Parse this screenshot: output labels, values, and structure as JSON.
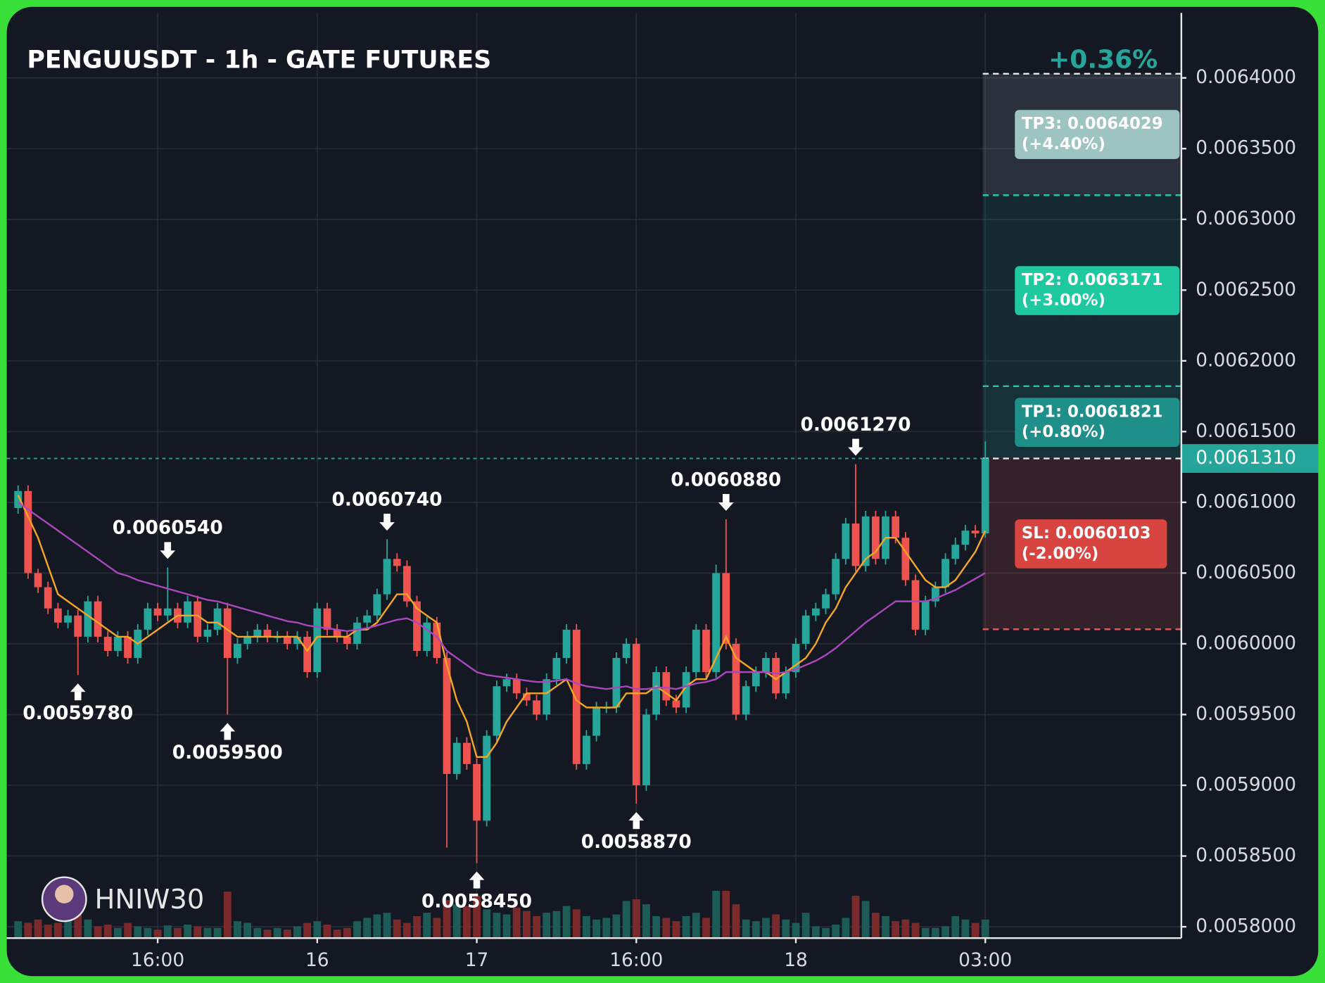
{
  "header": {
    "title": "PENGUUSDT - 1h - GATE FUTURES",
    "change": "+0.36%"
  },
  "watermark": "HNIW30",
  "chart_data": {
    "type": "candlestick",
    "categories": [
      null,
      null,
      null,
      null,
      null,
      null,
      null,
      null,
      null,
      null,
      null,
      null,
      null,
      null,
      "16:00",
      null,
      null,
      null,
      null,
      null,
      null,
      null,
      null,
      null,
      null,
      null,
      null,
      null,
      null,
      null,
      "16",
      null,
      null,
      null,
      null,
      null,
      null,
      null,
      null,
      null,
      null,
      null,
      null,
      null,
      null,
      null,
      "17",
      null,
      null,
      null,
      null,
      null,
      null,
      null,
      null,
      null,
      null,
      null,
      null,
      null,
      null,
      null,
      "16:00",
      null,
      null,
      null,
      null,
      null,
      null,
      null,
      null,
      null,
      null,
      null,
      null,
      null,
      null,
      null,
      "18",
      null,
      null,
      null,
      null,
      null,
      null,
      null,
      null,
      null,
      null,
      null,
      null,
      null,
      null,
      null,
      null,
      null,
      null,
      "03:00"
    ],
    "ohlc": [
      [
        0.006096,
        0.006112,
        0.006092,
        0.006108
      ],
      [
        0.006108,
        0.006112,
        0.006046,
        0.00605
      ],
      [
        0.00605,
        0.006053,
        0.006036,
        0.00604
      ],
      [
        0.00604,
        0.006044,
        0.006021,
        0.006025
      ],
      [
        0.006025,
        0.006029,
        0.006011,
        0.006015
      ],
      [
        0.006015,
        0.006024,
        0.006011,
        0.00602
      ],
      [
        0.00602,
        0.006024,
        0.005978,
        0.006005
      ],
      [
        0.006005,
        0.006034,
        0.006001,
        0.00603
      ],
      [
        0.00603,
        0.006034,
        0.006001,
        0.006005
      ],
      [
        0.006005,
        0.006009,
        0.005991,
        0.005995
      ],
      [
        0.005995,
        0.006009,
        0.005991,
        0.006005
      ],
      [
        0.006005,
        0.006009,
        0.005986,
        0.00599
      ],
      [
        0.00599,
        0.006014,
        0.005986,
        0.00601
      ],
      [
        0.00601,
        0.006029,
        0.006006,
        0.006025
      ],
      [
        0.006025,
        0.006029,
        0.006016,
        0.00602
      ],
      [
        0.00602,
        0.006054,
        0.006016,
        0.006025
      ],
      [
        0.006025,
        0.006029,
        0.006011,
        0.006015
      ],
      [
        0.006015,
        0.006034,
        0.006011,
        0.00603
      ],
      [
        0.00603,
        0.006034,
        0.006001,
        0.006005
      ],
      [
        0.006005,
        0.006014,
        0.006001,
        0.00601
      ],
      [
        0.00601,
        0.006029,
        0.006006,
        0.006025
      ],
      [
        0.006025,
        0.006029,
        0.00595,
        0.00599
      ],
      [
        0.00599,
        0.006004,
        0.005986,
        0.006
      ],
      [
        0.006,
        0.006009,
        0.005996,
        0.006005
      ],
      [
        0.006005,
        0.006014,
        0.006001,
        0.00601
      ],
      [
        0.00601,
        0.006014,
        0.006001,
        0.006005
      ],
      [
        0.006005,
        0.006009,
        0.006001,
        0.006005
      ],
      [
        0.006005,
        0.006009,
        0.005996,
        0.006
      ],
      [
        0.006,
        0.006009,
        0.005996,
        0.006005
      ],
      [
        0.006005,
        0.006009,
        0.005976,
        0.00598
      ],
      [
        0.00598,
        0.006029,
        0.005976,
        0.006025
      ],
      [
        0.006025,
        0.006029,
        0.006006,
        0.00601
      ],
      [
        0.00601,
        0.006014,
        0.006001,
        0.006005
      ],
      [
        0.006005,
        0.006009,
        0.005996,
        0.006
      ],
      [
        0.006,
        0.006019,
        0.005996,
        0.006015
      ],
      [
        0.006015,
        0.006024,
        0.006011,
        0.00602
      ],
      [
        0.00602,
        0.006039,
        0.006016,
        0.006035
      ],
      [
        0.006035,
        0.006074,
        0.006031,
        0.00606
      ],
      [
        0.00606,
        0.006064,
        0.006051,
        0.006055
      ],
      [
        0.006055,
        0.006059,
        0.006026,
        0.00603
      ],
      [
        0.00603,
        0.006034,
        0.005991,
        0.005995
      ],
      [
        0.005995,
        0.006019,
        0.005991,
        0.006015
      ],
      [
        0.006015,
        0.006019,
        0.005986,
        0.00599
      ],
      [
        0.00599,
        0.005994,
        0.005856,
        0.005908
      ],
      [
        0.005908,
        0.005934,
        0.005904,
        0.00593
      ],
      [
        0.00593,
        0.005934,
        0.005911,
        0.005915
      ],
      [
        0.005915,
        0.005919,
        0.005845,
        0.005875
      ],
      [
        0.005875,
        0.005939,
        0.005871,
        0.005935
      ],
      [
        0.005935,
        0.005974,
        0.005931,
        0.00597
      ],
      [
        0.00597,
        0.005979,
        0.005966,
        0.005975
      ],
      [
        0.005975,
        0.005979,
        0.005961,
        0.005965
      ],
      [
        0.005965,
        0.005969,
        0.005956,
        0.00596
      ],
      [
        0.00596,
        0.005964,
        0.005946,
        0.00595
      ],
      [
        0.00595,
        0.005979,
        0.005946,
        0.005975
      ],
      [
        0.005975,
        0.005994,
        0.005971,
        0.00599
      ],
      [
        0.00599,
        0.006014,
        0.005986,
        0.00601
      ],
      [
        0.00601,
        0.006014,
        0.005911,
        0.005915
      ],
      [
        0.005915,
        0.005939,
        0.005911,
        0.005935
      ],
      [
        0.005935,
        0.005959,
        0.005931,
        0.005955
      ],
      [
        0.005955,
        0.005959,
        0.005951,
        0.005955
      ],
      [
        0.005955,
        0.005994,
        0.005951,
        0.00599
      ],
      [
        0.00599,
        0.006004,
        0.005986,
        0.006
      ],
      [
        0.006,
        0.006004,
        0.005887,
        0.0059
      ],
      [
        0.0059,
        0.005954,
        0.005896,
        0.00595
      ],
      [
        0.00595,
        0.005984,
        0.005946,
        0.00598
      ],
      [
        0.00598,
        0.005984,
        0.005956,
        0.00596
      ],
      [
        0.00596,
        0.005964,
        0.005951,
        0.005955
      ],
      [
        0.005955,
        0.005984,
        0.005951,
        0.00598
      ],
      [
        0.00598,
        0.006014,
        0.005976,
        0.00601
      ],
      [
        0.00601,
        0.006014,
        0.005976,
        0.00598
      ],
      [
        0.00598,
        0.006056,
        0.005976,
        0.00605
      ],
      [
        0.00605,
        0.006088,
        0.005996,
        0.006
      ],
      [
        0.006,
        0.006004,
        0.005946,
        0.00595
      ],
      [
        0.00595,
        0.005974,
        0.005946,
        0.00597
      ],
      [
        0.00597,
        0.005984,
        0.005966,
        0.00598
      ],
      [
        0.00598,
        0.005994,
        0.005976,
        0.00599
      ],
      [
        0.00599,
        0.005994,
        0.005961,
        0.005965
      ],
      [
        0.005965,
        0.005984,
        0.005961,
        0.00598
      ],
      [
        0.00598,
        0.006004,
        0.005976,
        0.006
      ],
      [
        0.006,
        0.006024,
        0.005996,
        0.00602
      ],
      [
        0.00602,
        0.006029,
        0.006016,
        0.006025
      ],
      [
        0.006025,
        0.006039,
        0.006021,
        0.006035
      ],
      [
        0.006035,
        0.006064,
        0.006031,
        0.00606
      ],
      [
        0.00606,
        0.006089,
        0.006056,
        0.006085
      ],
      [
        0.006085,
        0.006127,
        0.006051,
        0.006055
      ],
      [
        0.006055,
        0.006094,
        0.006051,
        0.00609
      ],
      [
        0.00609,
        0.006094,
        0.006056,
        0.00606
      ],
      [
        0.00606,
        0.006094,
        0.006056,
        0.00609
      ],
      [
        0.00609,
        0.006094,
        0.006071,
        0.006075
      ],
      [
        0.006075,
        0.006079,
        0.006041,
        0.006045
      ],
      [
        0.006045,
        0.006049,
        0.006006,
        0.00601
      ],
      [
        0.00601,
        0.006034,
        0.006006,
        0.00603
      ],
      [
        0.00603,
        0.006044,
        0.006026,
        0.00604
      ],
      [
        0.00604,
        0.006064,
        0.006036,
        0.00606
      ],
      [
        0.00606,
        0.006075,
        0.006056,
        0.00607
      ],
      [
        0.00607,
        0.006084,
        0.006066,
        0.00608
      ],
      [
        0.00608,
        0.006084,
        0.006075,
        0.006078
      ],
      [
        0.006078,
        0.006143,
        0.006075,
        0.006131
      ]
    ],
    "volume": [
      20,
      18,
      22,
      16,
      18,
      25,
      30,
      22,
      14,
      16,
      12,
      18,
      14,
      12,
      10,
      15,
      12,
      16,
      14,
      12,
      12,
      55,
      20,
      18,
      12,
      10,
      12,
      10,
      14,
      18,
      20,
      16,
      10,
      12,
      20,
      24,
      28,
      30,
      22,
      18,
      26,
      30,
      24,
      45,
      40,
      38,
      50,
      34,
      30,
      28,
      36,
      32,
      26,
      30,
      32,
      38,
      34,
      26,
      22,
      24,
      28,
      44,
      46,
      40,
      26,
      24,
      20,
      26,
      30,
      24,
      56,
      56,
      40,
      22,
      20,
      24,
      28,
      22,
      18,
      30,
      14,
      12,
      16,
      24,
      50,
      44,
      30,
      26,
      20,
      22,
      18,
      12,
      12,
      14,
      26,
      22,
      18,
      22
    ],
    "colors": {
      "up": "#26a69a",
      "down": "#ef5350",
      "volume_up": "#1d5b56",
      "volume_down": "#7b2a2c"
    },
    "moving_averages": [
      {
        "color": "#f5a623",
        "values": [
          0.006105,
          0.00609,
          0.006075,
          0.006055,
          0.006035,
          0.00603,
          0.006025,
          0.00602,
          0.006015,
          0.00601,
          0.006005,
          0.006005,
          0.006,
          0.006005,
          0.00601,
          0.006015,
          0.00602,
          0.00602,
          0.00602,
          0.006015,
          0.006015,
          0.00601,
          0.006005,
          0.006005,
          0.006005,
          0.006005,
          0.006005,
          0.006005,
          0.006005,
          0.005995,
          0.006005,
          0.006005,
          0.006005,
          0.006005,
          0.00601,
          0.00601,
          0.006015,
          0.006025,
          0.006035,
          0.006035,
          0.006025,
          0.00602,
          0.006015,
          0.005985,
          0.00596,
          0.005945,
          0.00592,
          0.00592,
          0.00593,
          0.005945,
          0.005955,
          0.005965,
          0.005965,
          0.005965,
          0.00597,
          0.005975,
          0.00596,
          0.005955,
          0.005955,
          0.005955,
          0.005955,
          0.005965,
          0.005965,
          0.005965,
          0.00597,
          0.005965,
          0.00596,
          0.00597,
          0.005975,
          0.005975,
          0.00599,
          0.006005,
          0.00599,
          0.005985,
          0.00598,
          0.00598,
          0.005975,
          0.00598,
          0.005985,
          0.00599,
          0.006,
          0.006015,
          0.006025,
          0.00604,
          0.00605,
          0.00606,
          0.006065,
          0.006075,
          0.006075,
          0.006065,
          0.006055,
          0.006045,
          0.00604,
          0.00604,
          0.006045,
          0.006055,
          0.006065,
          0.00608
        ]
      },
      {
        "color": "#ab47bc",
        "values": [
          0.0061,
          0.006095,
          0.00609,
          0.006085,
          0.00608,
          0.006075,
          0.00607,
          0.006065,
          0.00606,
          0.006055,
          0.00605,
          0.006048,
          0.006045,
          0.006043,
          0.006041,
          0.006039,
          0.006037,
          0.006035,
          0.006033,
          0.006031,
          0.00603,
          0.006028,
          0.006026,
          0.006024,
          0.006022,
          0.00602,
          0.006018,
          0.006016,
          0.006015,
          0.006013,
          0.006012,
          0.006011,
          0.00601,
          0.006009,
          0.00601,
          0.006011,
          0.006013,
          0.006015,
          0.006017,
          0.006018,
          0.006015,
          0.00601,
          0.006005,
          0.005995,
          0.00599,
          0.005985,
          0.00598,
          0.005978,
          0.005977,
          0.005976,
          0.005975,
          0.005974,
          0.005973,
          0.005973,
          0.005974,
          0.005975,
          0.005972,
          0.00597,
          0.005969,
          0.005968,
          0.005969,
          0.00597,
          0.005968,
          0.005968,
          0.005969,
          0.005969,
          0.005968,
          0.00597,
          0.005972,
          0.005973,
          0.005975,
          0.00598,
          0.00598,
          0.00598,
          0.00598,
          0.00598,
          0.005979,
          0.00598,
          0.005982,
          0.005985,
          0.005988,
          0.005992,
          0.005997,
          0.006003,
          0.006009,
          0.006015,
          0.00602,
          0.006025,
          0.00603,
          0.00603,
          0.00603,
          0.00603,
          0.006032,
          0.006035,
          0.006038,
          0.006042,
          0.006046,
          0.00605
        ]
      }
    ],
    "ylim": [
      0.005792,
      0.006446
    ],
    "yticks": [
      {
        "value": 0.0058,
        "label": "0.0058000"
      },
      {
        "value": 0.00585,
        "label": "0.0058500"
      },
      {
        "value": 0.0059,
        "label": "0.0059000"
      },
      {
        "value": 0.00595,
        "label": "0.0059500"
      },
      {
        "value": 0.006,
        "label": "0.0060000"
      },
      {
        "value": 0.00605,
        "label": "0.0060500"
      },
      {
        "value": 0.0061,
        "label": "0.0061000"
      },
      {
        "value": 0.00615,
        "label": "0.0061500"
      },
      {
        "value": 0.0062,
        "label": "0.0062000"
      },
      {
        "value": 0.00625,
        "label": "0.0062500"
      },
      {
        "value": 0.0063,
        "label": "0.0063000"
      },
      {
        "value": 0.00635,
        "label": "0.0063500"
      },
      {
        "value": 0.0064,
        "label": "0.0064000"
      }
    ],
    "grid": true,
    "annotations": [
      {
        "value": 0.005978,
        "label": "0.0059780"
      },
      {
        "value": 0.006054,
        "label": "0.0060540"
      },
      {
        "value": 0.00595,
        "label": "0.0059500"
      },
      {
        "value": 0.006074,
        "label": "0.0060740"
      },
      {
        "value": 0.005845,
        "label": "0.0058450"
      },
      {
        "value": 0.005887,
        "label": "0.0058870"
      },
      {
        "value": 0.006088,
        "label": "0.0060880"
      },
      {
        "value": 0.006127,
        "label": "0.0061270"
      }
    ],
    "last_price": {
      "value": 0.006131,
      "label": "0.0061310"
    },
    "targets": [
      {
        "value": 0.0064029,
        "label": "TP3: 0.0064029",
        "change": "(+4.40%)"
      },
      {
        "value": 0.0063171,
        "label": "TP2: 0.0063171",
        "change": "(+3.00%)"
      },
      {
        "value": 0.0061821,
        "label": "TP1: 0.0061821",
        "change": "(+0.80%)"
      }
    ],
    "stop": {
      "value": 0.0060103,
      "label": "SL: 0.0060103",
      "change": "(-2.00%)"
    }
  }
}
